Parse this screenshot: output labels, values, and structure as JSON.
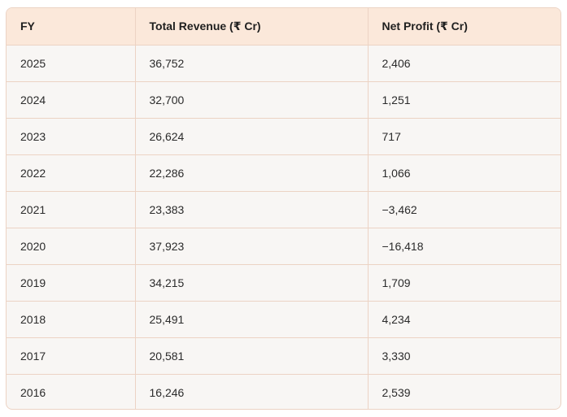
{
  "table": {
    "headers": [
      "FY",
      "Total Revenue (₹ Cr)",
      "Net Profit (₹ Cr)"
    ],
    "rows": [
      [
        "2025",
        "36,752",
        "2,406"
      ],
      [
        "2024",
        "32,700",
        "1,251"
      ],
      [
        "2023",
        "26,624",
        "717"
      ],
      [
        "2022",
        "22,286",
        "1,066"
      ],
      [
        "2021",
        "23,383",
        "−3,462"
      ],
      [
        "2020",
        "37,923",
        "−16,418"
      ],
      [
        "2019",
        "34,215",
        "1,709"
      ],
      [
        "2018",
        "25,491",
        "4,234"
      ],
      [
        "2017",
        "20,581",
        "3,330"
      ],
      [
        "2016",
        "16,246",
        "2,539"
      ]
    ]
  },
  "colors": {
    "header_bg": "#fbe8da",
    "body_bg": "#f8f6f4",
    "border": "#ecd3c4",
    "text": "#2b2b2b"
  }
}
